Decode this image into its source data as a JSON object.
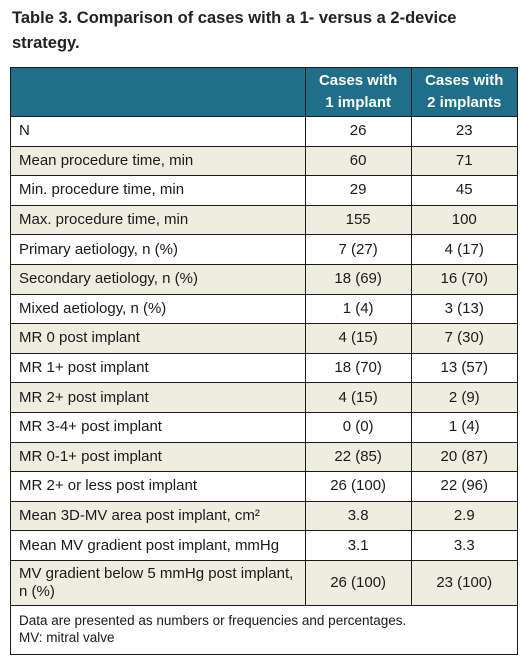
{
  "title": "Table 3. Comparison of cases with a 1- versus a 2-device strategy.",
  "header": {
    "col1": "",
    "col2_line1": "Cases with",
    "col2_line2": "1 implant",
    "col3_line1": "Cases with",
    "col3_line2": "2 implants"
  },
  "rows": [
    {
      "label": "N",
      "a": "26",
      "b": "23"
    },
    {
      "label": "Mean procedure time, min",
      "a": "60",
      "b": "71"
    },
    {
      "label": "Min. procedure time, min",
      "a": "29",
      "b": "45"
    },
    {
      "label": "Max. procedure time, min",
      "a": "155",
      "b": "100"
    },
    {
      "label": "Primary aetiology, n (%)",
      "a": "7 (27)",
      "b": "4 (17)"
    },
    {
      "label": "Secondary aetiology, n (%)",
      "a": "18 (69)",
      "b": "16 (70)"
    },
    {
      "label": "Mixed aetiology, n (%)",
      "a": "1 (4)",
      "b": "3 (13)"
    },
    {
      "label": "MR 0 post implant",
      "a": "4 (15)",
      "b": "7 (30)"
    },
    {
      "label": "MR 1+ post implant",
      "a": "18 (70)",
      "b": "13 (57)"
    },
    {
      "label": "MR 2+ post implant",
      "a": "4 (15)",
      "b": "2 (9)"
    },
    {
      "label": "MR 3-4+ post implant",
      "a": "0 (0)",
      "b": "1 (4)"
    },
    {
      "label": "MR 0-1+ post implant",
      "a": "22 (85)",
      "b": "20 (87)"
    },
    {
      "label": "MR 2+ or less post implant",
      "a": "26 (100)",
      "b": "22 (96)"
    },
    {
      "label": "Mean 3D-MV area post implant, cm²",
      "a": "3.8",
      "b": "2.9"
    },
    {
      "label": "Mean MV gradient post implant, mmHg",
      "a": "3.1",
      "b": "3.3"
    },
    {
      "label": "MV gradient below 5 mmHg post implant, n (%)",
      "a": "26 (100)",
      "b": "23 (100)"
    }
  ],
  "footnote_line1": "Data are presented as numbers or frequencies and percentages.",
  "footnote_line2": "MV: mitral valve",
  "colors": {
    "header_bg": "#1f6f8b",
    "stripe_bg": "#efece0"
  }
}
